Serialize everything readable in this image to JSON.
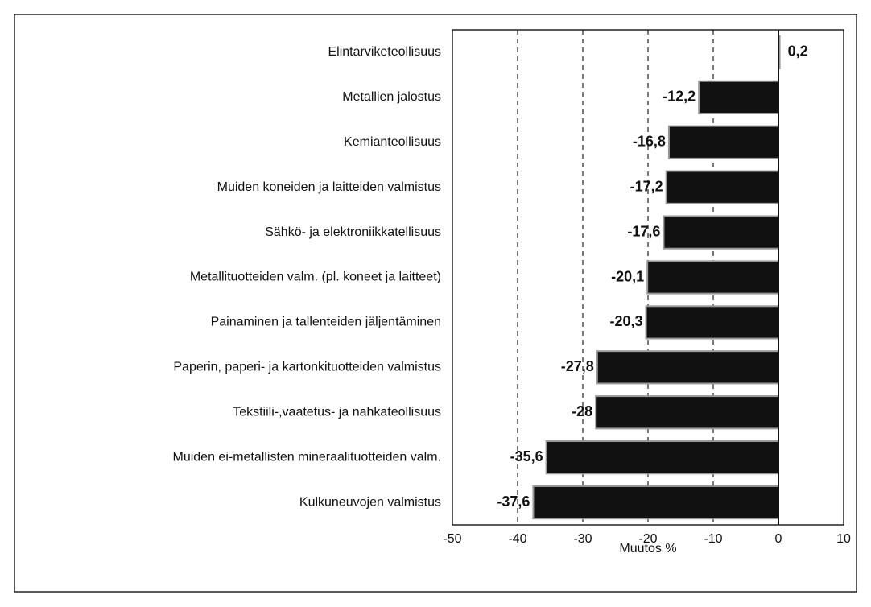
{
  "chart_data": {
    "type": "bar",
    "orientation": "horizontal",
    "categories": [
      "Elintarviketeollisuus",
      "Metallien jalostus",
      "Kemianteollisuus",
      "Muiden koneiden ja laitteiden valmistus",
      "Sähkö- ja elektroniikkatellisuus",
      "Metallituotteiden valm. (pl. koneet ja laitteet)",
      "Painaminen ja tallenteiden jäljentäminen",
      "Paperin, paperi- ja kartonkituotteiden valmistus",
      "Tekstiili-,vaatetus- ja nahkateollisuus",
      "Muiden ei-metallisten mineraalituotteiden valm.",
      "Kulkuneuvojen valmistus"
    ],
    "values": [
      0.2,
      -12.2,
      -16.8,
      -17.2,
      -17.6,
      -20.1,
      -20.3,
      -27.8,
      -28,
      -35.6,
      -37.6
    ],
    "value_labels": [
      "0,2",
      "-12,2",
      "-16,8",
      "-17,2",
      "-17,6",
      "-20,1",
      "-20,3",
      "-27,8",
      "-28",
      "-35,6",
      "-37,6"
    ],
    "color": "#111111",
    "xlabel": "Muutos %",
    "xlim": [
      -50,
      10
    ],
    "xticks": [
      -50,
      -40,
      -30,
      -20,
      -10,
      0,
      10
    ],
    "grid": true
  }
}
